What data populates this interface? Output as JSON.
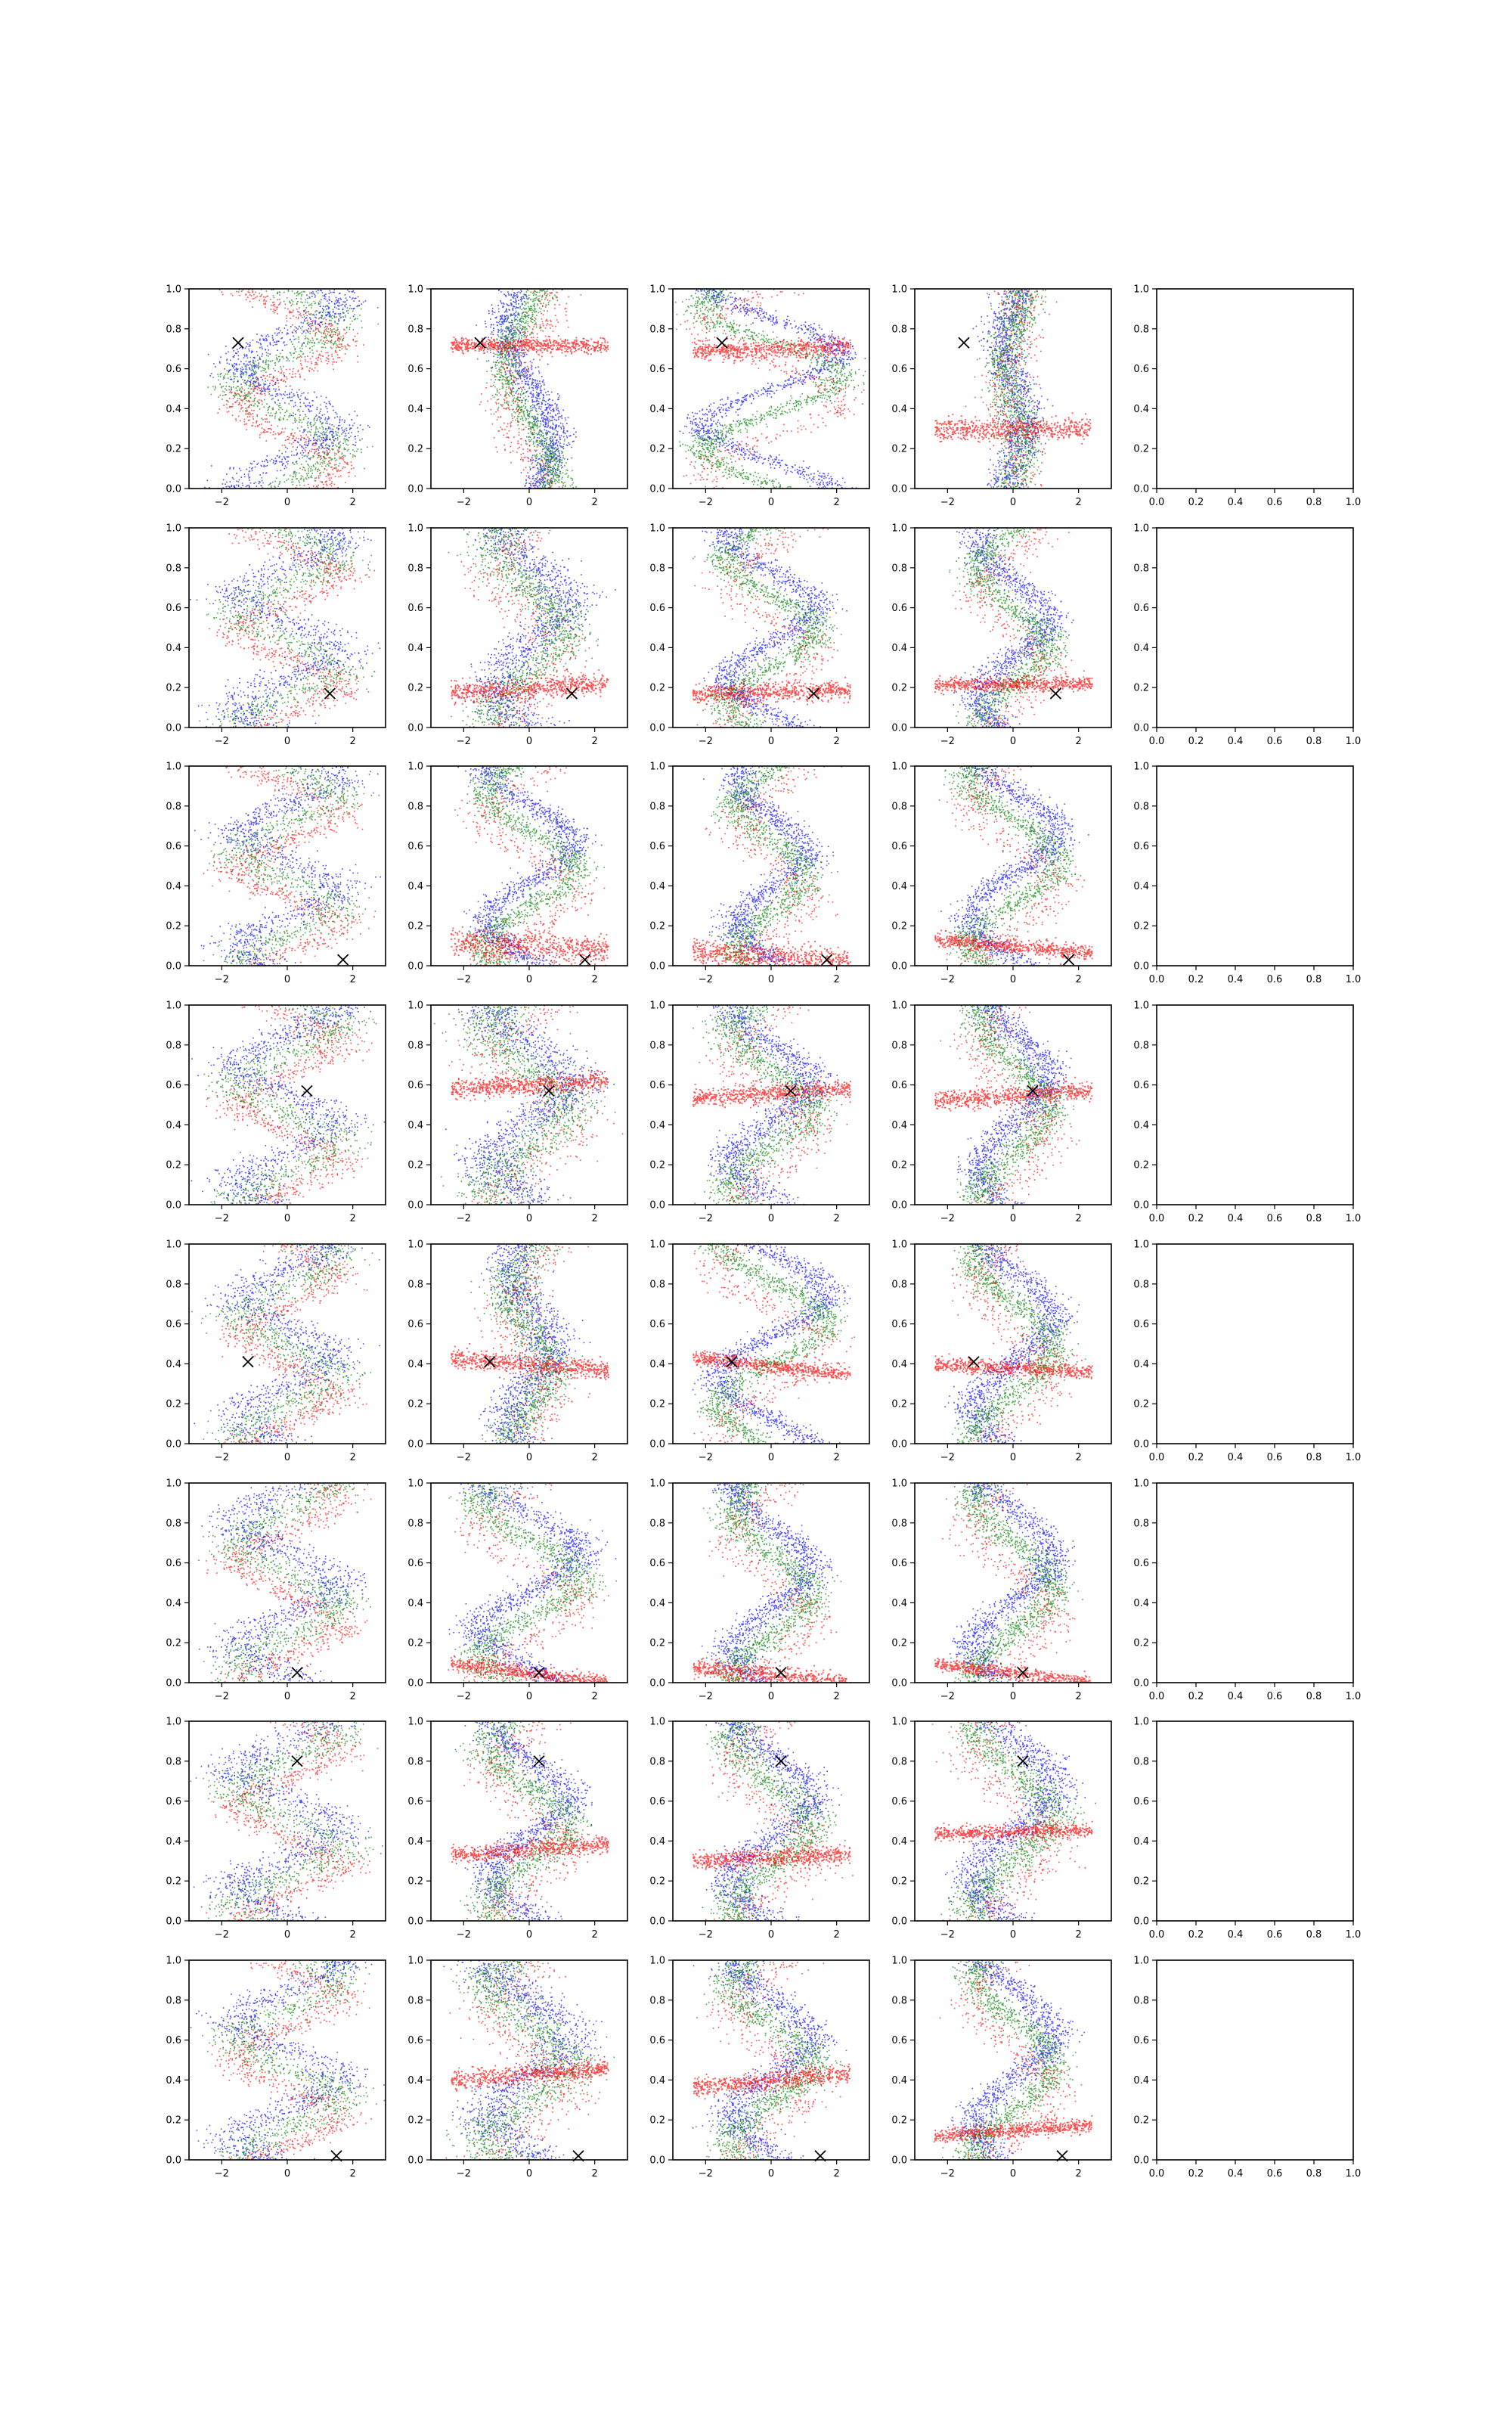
{
  "chart_data": {
    "type": "scatter",
    "layout": {
      "rows": 8,
      "cols": 5
    },
    "series_colors": {
      "blue": "#0000ff",
      "green": "#008000",
      "red": "#ff0000",
      "marker": "#000000"
    },
    "marker_symbol": "x",
    "data_panel": {
      "xlim": [
        -3,
        3
      ],
      "ylim": [
        0,
        1
      ],
      "xticks": [
        -2,
        0,
        2
      ],
      "xtick_labels": [
        "−2",
        "0",
        "2"
      ],
      "yticks": [
        0.0,
        0.2,
        0.4,
        0.6,
        0.8,
        1.0
      ],
      "ytick_labels": [
        "0.0",
        "0.2",
        "0.4",
        "0.6",
        "0.8",
        "1.0"
      ]
    },
    "empty_panel": {
      "xlim": [
        0,
        1
      ],
      "ylim": [
        0,
        1
      ],
      "xticks": [
        0.0,
        0.2,
        0.4,
        0.6,
        0.8,
        1.0
      ],
      "xtick_labels": [
        "0.0",
        "0.2",
        "0.4",
        "0.6",
        "0.8",
        "1.0"
      ],
      "yticks": [
        0.0,
        0.2,
        0.4,
        0.6,
        0.8,
        1.0
      ],
      "ytick_labels": [
        "0.0",
        "0.2",
        "0.4",
        "0.6",
        "0.8",
        "1.0"
      ]
    },
    "rows": [
      {
        "marker": [
          -1.5,
          0.73
        ],
        "bands": [
          [
            0.25,
            1.2,
            0.18,
            1.6,
            0.03,
            0.75,
            0.5,
            0.02,
            0.12
          ],
          [
            0.72,
            0.0,
            0.1,
            0.9,
            0.04,
            0.02,
            0.25,
            0.02,
            0.3
          ],
          [
            0.7,
            0.4,
            0.04,
            1.4,
            0.05,
            0.3,
            0.7,
            0.03,
            0.2
          ],
          [
            0.3,
            0.0,
            0.12,
            1.3,
            0.06,
            0.8,
            0.1,
            0.03,
            0.1
          ]
        ]
      },
      {
        "marker": [
          1.3,
          0.17
        ],
        "bands": [
          [
            0.25,
            1.0,
            0.08,
            1.8,
            0.03,
            0.55,
            0.5,
            0.04,
            0.12
          ],
          [
            0.2,
            0.8,
            0.2,
            1.2,
            0.06,
            0.5,
            0.35,
            0.05,
            0.15
          ],
          [
            0.18,
            0.3,
            0.04,
            1.4,
            0.05,
            0.4,
            0.45,
            0.03,
            0.15
          ],
          [
            0.22,
            0.2,
            0.05,
            1.3,
            0.04,
            0.55,
            0.35,
            0.03,
            0.1
          ]
        ]
      },
      {
        "marker": [
          1.7,
          0.03
        ],
        "bands": [
          [
            0.3,
            1.0,
            0.15,
            1.8,
            0.03,
            0.55,
            0.5,
            0.04,
            0.12
          ],
          [
            0.1,
            -0.9,
            0.02,
            1.3,
            0.08,
            0.45,
            0.45,
            0.03,
            0.15
          ],
          [
            0.05,
            -0.8,
            0.15,
            1.4,
            0.07,
            0.45,
            0.35,
            0.03,
            0.1
          ],
          [
            0.1,
            -1.2,
            0.32,
            1.2,
            0.04,
            0.45,
            0.45,
            0.03,
            0.1
          ]
        ]
      },
      {
        "marker": [
          0.6,
          0.57
        ],
        "bands": [
          [
            0.5,
            1.1,
            0.1,
            1.7,
            0.03,
            0.55,
            0.5,
            0.04,
            0.12
          ],
          [
            0.6,
            0.7,
            0.35,
            1.3,
            0.05,
            0.45,
            0.4,
            0.06,
            0.15
          ],
          [
            0.56,
            0.8,
            0.25,
            1.3,
            0.05,
            0.45,
            0.4,
            0.04,
            0.15
          ],
          [
            0.55,
            0.9,
            0.3,
            1.1,
            0.05,
            0.55,
            0.35,
            0.03,
            0.1
          ]
        ]
      },
      {
        "marker": [
          -1.2,
          0.41
        ],
        "bands": [
          [
            0.4,
            1.2,
            0.05,
            1.7,
            0.04,
            0.5,
            0.45,
            0.04,
            0.12
          ],
          [
            0.4,
            -1.0,
            0.18,
            1.3,
            0.05,
            0.6,
            0.2,
            0.04,
            0.15
          ],
          [
            0.39,
            -1.5,
            0.4,
            1.2,
            0.04,
            0.35,
            0.55,
            0.03,
            0.1
          ],
          [
            0.38,
            -0.7,
            0.3,
            1.1,
            0.04,
            0.55,
            0.4,
            0.03,
            0.12
          ]
        ]
      },
      {
        "marker": [
          0.3,
          0.05
        ],
        "bands": [
          [
            0.7,
            1.4,
            0.08,
            1.6,
            0.04,
            0.45,
            0.5,
            0.04,
            0.15
          ],
          [
            0.05,
            -1.8,
            0.1,
            1.3,
            0.04,
            0.4,
            0.5,
            0.04,
            0.15
          ],
          [
            0.04,
            -1.4,
            0.55,
            1.2,
            0.05,
            0.55,
            0.4,
            0.03,
            0.15
          ],
          [
            0.05,
            -1.7,
            0.15,
            1.1,
            0.04,
            0.55,
            0.4,
            0.03,
            0.1
          ]
        ]
      },
      {
        "marker": [
          0.3,
          0.8
        ],
        "bands": [
          [
            0.35,
            1.4,
            0.25,
            1.7,
            0.03,
            0.45,
            0.5,
            0.04,
            0.12
          ],
          [
            0.36,
            0.9,
            0.45,
            1.3,
            0.05,
            0.45,
            0.4,
            0.04,
            0.15
          ],
          [
            0.32,
            0.5,
            0.2,
            1.2,
            0.05,
            0.5,
            0.4,
            0.04,
            0.12
          ],
          [
            0.45,
            0.3,
            0.35,
            1.1,
            0.04,
            0.5,
            0.4,
            0.04,
            0.1
          ]
        ]
      },
      {
        "marker": [
          1.5,
          0.02
        ],
        "bands": [
          [
            0.45,
            1.1,
            0.1,
            1.7,
            0.03,
            0.55,
            0.5,
            0.04,
            0.12
          ],
          [
            0.43,
            1.0,
            0.3,
            1.3,
            0.05,
            0.45,
            0.4,
            0.06,
            0.15
          ],
          [
            0.4,
            1.2,
            0.35,
            1.3,
            0.05,
            0.45,
            0.4,
            0.04,
            0.15
          ],
          [
            0.15,
            0.9,
            0.4,
            1.1,
            0.04,
            0.55,
            0.4,
            0.03,
            0.1
          ]
        ]
      }
    ]
  }
}
